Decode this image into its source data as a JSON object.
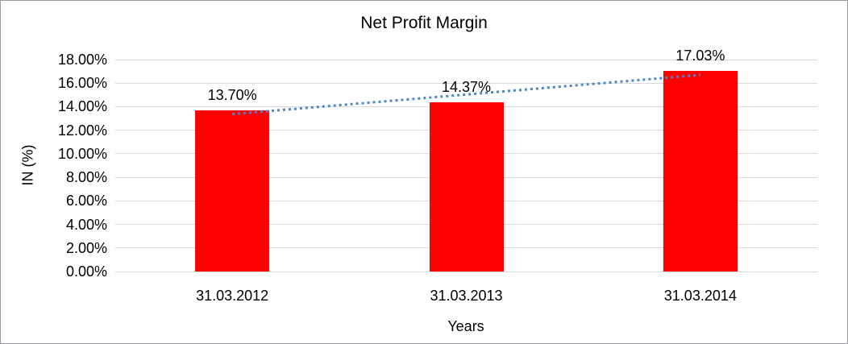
{
  "chart_data": {
    "type": "bar",
    "title": "Net Profit Margin",
    "categories": [
      "31.03.2012",
      "31.03.2013",
      "31.03.2014"
    ],
    "values": [
      13.7,
      14.37,
      17.03
    ],
    "data_labels": [
      "13.70%",
      "14.37%",
      "17.03%"
    ],
    "xlabel": "Years",
    "ylabel": "IN (%)",
    "ylim": [
      0,
      18
    ],
    "ytick_step": 2,
    "ytick_labels": [
      "0.00%",
      "2.00%",
      "4.00%",
      "6.00%",
      "8.00%",
      "10.00%",
      "12.00%",
      "14.00%",
      "16.00%",
      "18.00%"
    ],
    "grid": true,
    "legend": "none",
    "bar_color": "#FF0000",
    "gridline_color": "#D9D9D9",
    "text_color": "#000000",
    "trendline": {
      "type": "linear",
      "style": "dotted",
      "color": "#4A86C8",
      "start_pct": 13.37,
      "end_pct": 16.7
    }
  }
}
